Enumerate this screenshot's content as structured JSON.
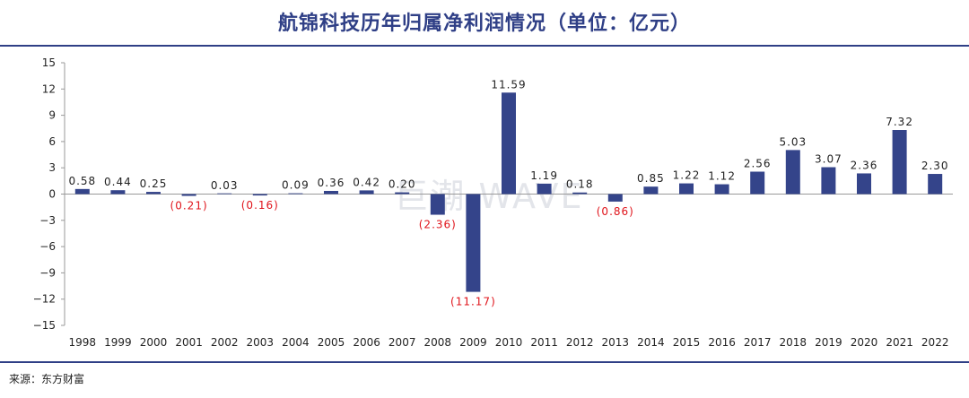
{
  "chart_data": {
    "type": "bar",
    "title": "航锦科技历年归属净利润情况（单位：亿元）",
    "categories": [
      "1998",
      "1999",
      "2000",
      "2001",
      "2002",
      "2003",
      "2004",
      "2005",
      "2006",
      "2007",
      "2008",
      "2009",
      "2010",
      "2011",
      "2012",
      "2013",
      "2014",
      "2015",
      "2016",
      "2017",
      "2018",
      "2019",
      "2020",
      "2021",
      "2022"
    ],
    "values": [
      0.58,
      0.44,
      0.25,
      -0.21,
      0.03,
      -0.16,
      0.09,
      0.36,
      0.42,
      0.2,
      -2.36,
      -11.17,
      11.59,
      1.19,
      0.18,
      -0.86,
      0.85,
      1.22,
      1.12,
      2.56,
      5.03,
      3.07,
      2.36,
      7.32,
      2.3
    ],
    "data_labels": [
      "0.58",
      "0.44",
      "0.25",
      "(0.21)",
      "0.03",
      "(0.16)",
      "0.09",
      "0.36",
      "0.42",
      "0.20",
      "(2.36)",
      "(11.17)",
      "11.59",
      "1.19",
      "0.18",
      "(0.86)",
      "0.85",
      "1.22",
      "1.12",
      "2.56",
      "5.03",
      "3.07",
      "2.36",
      "7.32",
      "2.30"
    ],
    "yticks": [
      "15",
      "12",
      "9",
      "6",
      "3",
      "0",
      "−3",
      "−6",
      "−9",
      "−12",
      "−15"
    ],
    "ylim": [
      -15,
      15
    ],
    "xlabel": "",
    "ylabel": "",
    "grid": false,
    "colors": {
      "bar": "#34448a",
      "negative_label": "#e0141b",
      "positive_label": "#222222",
      "title": "#2f3f86"
    }
  },
  "source": "来源：东方财富",
  "watermark": "巨潮 WAVE"
}
